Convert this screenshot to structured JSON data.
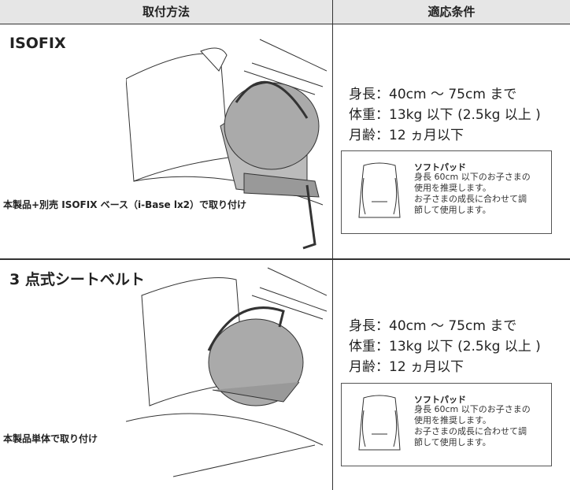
{
  "header": {
    "method": "取付方法",
    "conditions": "適応条件"
  },
  "rows": [
    {
      "title": "ISOFIX",
      "caption": "本製品+別売 ISOFIX ベース（i-Base lx2）で取り付け",
      "conditions": [
        "身長：40cm 〜 75cm まで",
        "体重：13kg 以下 (2.5kg 以上 )",
        "月齢：12 ヵ月以下"
      ],
      "pad": {
        "title": "ソフトパッド",
        "lines": [
          "身長 60cm 以下のお子さまの",
          "使用を推奨します。",
          "お子さまの成長に合わせて調",
          "節して使用します。"
        ]
      }
    },
    {
      "title": "3 点式シートベルト",
      "caption": "本製品単体で取り付け",
      "conditions": [
        "身長：40cm 〜 75cm まで",
        "体重：13kg 以下 (2.5kg 以上 )",
        "月齢：12 ヵ月以下"
      ],
      "pad": {
        "title": "ソフトパッド",
        "lines": [
          "身長 60cm 以下のお子さまの",
          "使用を推奨します。",
          "お子さまの成長に合わせて調",
          "節して使用します。"
        ]
      }
    }
  ]
}
